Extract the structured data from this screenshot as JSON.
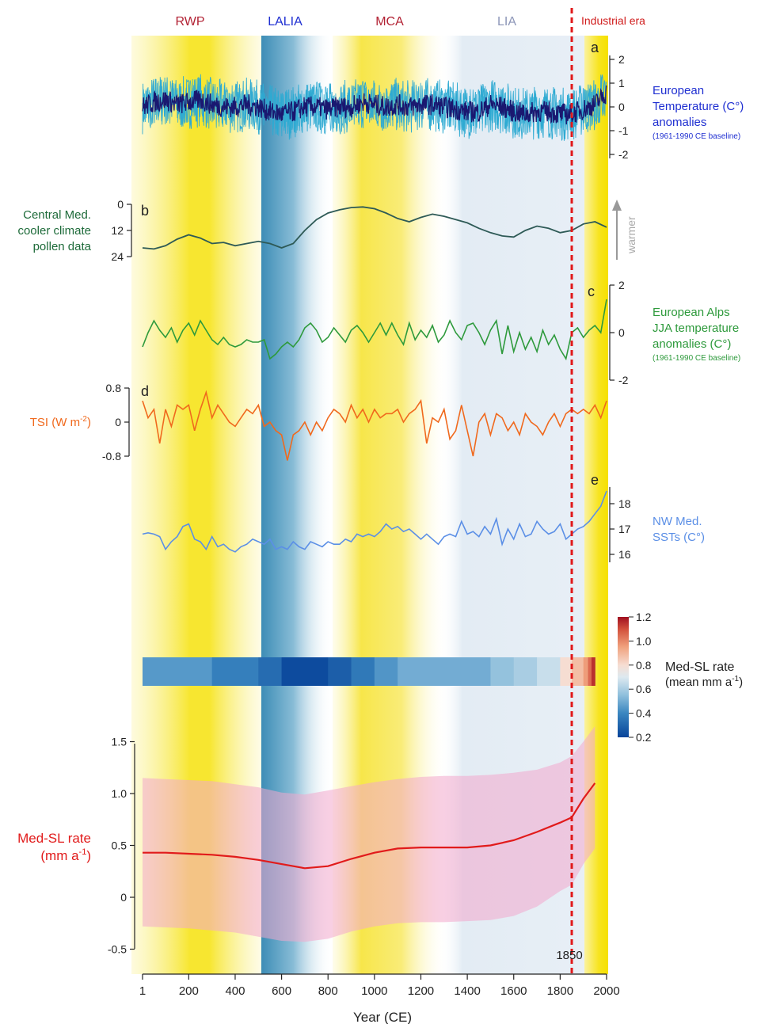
{
  "periods": [
    {
      "label": "RWP",
      "color": "#b22234"
    },
    {
      "label": "LALIA",
      "color": "#1f2fd1"
    },
    {
      "label": "MCA",
      "color": "#b22234"
    },
    {
      "label": "LIA",
      "color": "#8d96b8"
    },
    {
      "label": "Industrial era",
      "color": "#d01c1c"
    }
  ],
  "axis_x": {
    "label": "Year (CE)",
    "ticks": [
      "1",
      "200",
      "400",
      "600",
      "800",
      "1000",
      "1200",
      "1400",
      "1600",
      "1800",
      "2000"
    ],
    "tick_values": [
      1,
      200,
      400,
      600,
      800,
      1000,
      1200,
      1400,
      1600,
      1800,
      2000
    ],
    "domain": [
      1,
      2000
    ]
  },
  "marker": {
    "year": 1850,
    "label": "1850",
    "color": "#e0191b"
  },
  "colors": {
    "warm_band": "#f6ea3a",
    "cool_band": "#4a93b8",
    "lia_band": "#dfe8f2",
    "temp_series_dark": "#1a1870",
    "temp_series_light": "#2eaad2",
    "pollen": "#2e5a56",
    "alps": "#2e9a3c",
    "tsi": "#f0691d",
    "sst": "#5b8fe6",
    "slr_line": "#e11b1b",
    "slr_band": "#f2a8cc"
  },
  "panels": {
    "a": {
      "letter": "a",
      "label_lines": [
        "European",
        "Temperature (C°)",
        "anomalies"
      ],
      "baseline": "(1961-1990 CE baseline)",
      "ticks": [
        "2",
        "1",
        "0",
        "-1",
        "-2"
      ]
    },
    "b": {
      "letter": "b",
      "label_lines": [
        "Central Med.",
        "cooler climate",
        "pollen data"
      ],
      "ticks": [
        "0",
        "12",
        "24"
      ],
      "arrow_label": "warmer"
    },
    "c": {
      "letter": "c",
      "label_lines": [
        "European Alps",
        "JJA temperature",
        "anomalies (C°)"
      ],
      "baseline": "(1961-1990 CE baseline)",
      "ticks": [
        "2",
        "0",
        "-2"
      ]
    },
    "d": {
      "letter": "d",
      "label": "TSI (W m",
      "label_sup": "-2",
      "label_end": ")",
      "ticks": [
        "0.8",
        "0",
        "-0.8"
      ]
    },
    "e": {
      "letter": "e",
      "label_lines": [
        "NW Med.",
        "SSTs (C°)"
      ],
      "ticks": [
        "18",
        "17",
        "16"
      ]
    },
    "f": {
      "label_lines": [
        "Med-SL rate",
        "(mm a"
      ],
      "label_sup": "-1",
      "label_end": ")",
      "ticks": [
        "1.5",
        "1.0",
        "0.5",
        "0",
        "-0.5"
      ]
    }
  },
  "colorbar": {
    "title": "Med-SL rate",
    "subtitle": "(mean mm a",
    "subtitle_sup": "-1",
    "subtitle_end": ")",
    "ticks": [
      "1.2",
      "1.0",
      "0.8",
      "0.6",
      "0.4",
      "0.2"
    ]
  },
  "chart_data": [
    {
      "type": "line",
      "panel": "a",
      "ylabel": "European Temperature (C°) anomalies (1961-1990 CE baseline)",
      "ylim": [
        -2,
        2
      ],
      "series": [
        {
          "x": [
            1,
            50,
            100,
            150,
            200,
            250,
            300,
            350,
            400,
            450,
            500,
            550,
            600,
            650,
            700,
            750,
            800,
            850,
            900,
            950,
            1000,
            1050,
            1100,
            1150,
            1200,
            1250,
            1300,
            1350,
            1400,
            1450,
            1500,
            1550,
            1600,
            1650,
            1700,
            1750,
            1800,
            1850,
            1900,
            1950,
            2000
          ],
          "values": [
            0.0,
            0.2,
            0.3,
            0.1,
            0.2,
            0.3,
            0.1,
            0.0,
            0.0,
            0.1,
            0.0,
            -0.2,
            -0.3,
            -0.2,
            0.0,
            0.0,
            -0.1,
            0.0,
            0.0,
            0.2,
            0.1,
            0.0,
            0.1,
            0.0,
            0.1,
            0.1,
            0.0,
            -0.1,
            -0.2,
            -0.2,
            0.1,
            0.0,
            -0.2,
            -0.3,
            -0.2,
            -0.2,
            -0.3,
            -0.3,
            -0.1,
            0.1,
            0.6
          ]
        }
      ]
    },
    {
      "type": "line",
      "panel": "b",
      "ylabel": "Central Med. cooler climate pollen data",
      "ylim": [
        24,
        0
      ],
      "series": [
        {
          "x": [
            1,
            50,
            100,
            150,
            200,
            250,
            300,
            350,
            400,
            450,
            500,
            550,
            600,
            650,
            700,
            750,
            800,
            850,
            900,
            950,
            1000,
            1050,
            1100,
            1150,
            1200,
            1250,
            1300,
            1350,
            1400,
            1450,
            1500,
            1550,
            1600,
            1650,
            1700,
            1750,
            1800,
            1850,
            1900,
            1950,
            2000
          ],
          "values": [
            20,
            20.5,
            19,
            16,
            14,
            15.5,
            18,
            17.5,
            19,
            18,
            17,
            18,
            20,
            18,
            12,
            7,
            4,
            2.5,
            1.5,
            1.2,
            2,
            4,
            6.5,
            8,
            6,
            4.5,
            5.5,
            7,
            8.5,
            11,
            13,
            14.5,
            15,
            12,
            10,
            11,
            13,
            12,
            9,
            8,
            10.5
          ]
        }
      ]
    },
    {
      "type": "line",
      "panel": "c",
      "ylabel": "European Alps JJA temperature anomalies (C°)",
      "ylim": [
        -2,
        2
      ],
      "series": [
        {
          "x": [
            1,
            25,
            50,
            75,
            100,
            125,
            150,
            175,
            200,
            225,
            250,
            275,
            300,
            325,
            350,
            375,
            400,
            425,
            450,
            475,
            500,
            525,
            550,
            575,
            600,
            625,
            650,
            675,
            700,
            725,
            750,
            775,
            800,
            825,
            850,
            875,
            900,
            925,
            950,
            975,
            1000,
            1025,
            1050,
            1075,
            1100,
            1125,
            1150,
            1175,
            1200,
            1225,
            1250,
            1275,
            1300,
            1325,
            1350,
            1375,
            1400,
            1425,
            1450,
            1475,
            1500,
            1525,
            1550,
            1575,
            1600,
            1625,
            1650,
            1675,
            1700,
            1725,
            1750,
            1775,
            1800,
            1825,
            1850,
            1875,
            1900,
            1925,
            1950,
            1975,
            2000
          ],
          "values": [
            -0.6,
            0.0,
            0.5,
            0.1,
            -0.2,
            0.2,
            -0.4,
            0.1,
            0.4,
            -0.1,
            0.5,
            0.1,
            -0.3,
            -0.5,
            -0.2,
            -0.5,
            -0.6,
            -0.5,
            -0.3,
            -0.4,
            -0.4,
            -0.3,
            -1.1,
            -0.9,
            -0.6,
            -0.4,
            -0.6,
            -0.3,
            0.2,
            0.4,
            0.1,
            -0.4,
            -0.2,
            0.2,
            -0.1,
            -0.4,
            0.1,
            0.3,
            0.0,
            -0.4,
            0.0,
            0.4,
            -0.1,
            0.4,
            -0.1,
            -0.5,
            0.4,
            -0.3,
            0.1,
            -0.2,
            0.3,
            -0.4,
            -0.1,
            0.5,
            0.0,
            -0.3,
            0.3,
            0.4,
            0.0,
            -0.5,
            0.1,
            0.5,
            -0.9,
            0.3,
            -0.8,
            0.0,
            -0.7,
            -0.2,
            -0.8,
            0.1,
            -0.5,
            -0.1,
            -0.7,
            -1.1,
            0.0,
            0.2,
            -0.2,
            0.1,
            0.3,
            0.0,
            1.4
          ]
        }
      ]
    },
    {
      "type": "line",
      "panel": "d",
      "ylabel": "TSI (W m-2)",
      "ylim": [
        -0.8,
        0.8
      ],
      "series": [
        {
          "x": [
            1,
            25,
            50,
            75,
            100,
            125,
            150,
            175,
            200,
            225,
            250,
            275,
            300,
            325,
            350,
            375,
            400,
            425,
            450,
            475,
            500,
            525,
            550,
            575,
            600,
            625,
            650,
            675,
            700,
            725,
            750,
            775,
            800,
            825,
            850,
            875,
            900,
            925,
            950,
            975,
            1000,
            1025,
            1050,
            1075,
            1100,
            1125,
            1150,
            1175,
            1200,
            1225,
            1250,
            1275,
            1300,
            1325,
            1350,
            1375,
            1400,
            1425,
            1450,
            1475,
            1500,
            1525,
            1550,
            1575,
            1600,
            1625,
            1650,
            1675,
            1700,
            1725,
            1750,
            1775,
            1800,
            1825,
            1850,
            1875,
            1900,
            1925,
            1950,
            1975,
            2000
          ],
          "values": [
            0.5,
            0.1,
            0.3,
            -0.5,
            0.3,
            -0.1,
            0.4,
            0.3,
            0.4,
            -0.2,
            0.3,
            0.7,
            0.1,
            0.4,
            0.2,
            0.0,
            -0.1,
            0.1,
            0.3,
            0.2,
            0.4,
            -0.1,
            0.0,
            -0.2,
            -0.3,
            -0.9,
            -0.3,
            -0.2,
            0.0,
            -0.3,
            0.0,
            -0.2,
            0.1,
            0.3,
            0.2,
            0.0,
            0.4,
            0.1,
            0.3,
            0.0,
            0.3,
            0.1,
            0.2,
            0.2,
            0.3,
            0.0,
            0.2,
            0.3,
            0.5,
            -0.5,
            0.1,
            0.0,
            0.3,
            -0.4,
            -0.2,
            0.4,
            -0.2,
            -0.8,
            0.0,
            0.2,
            -0.3,
            0.2,
            0.1,
            -0.2,
            0.0,
            -0.3,
            0.2,
            0.0,
            -0.1,
            -0.3,
            0.0,
            0.2,
            -0.1,
            0.2,
            0.3,
            0.2,
            0.3,
            0.2,
            0.4,
            0.1,
            0.5
          ]
        }
      ]
    },
    {
      "type": "line",
      "panel": "e",
      "ylabel": "NW Med. SSTs (C°)",
      "ylim": [
        15.8,
        18.8
      ],
      "series": [
        {
          "x": [
            1,
            25,
            50,
            75,
            100,
            125,
            150,
            175,
            200,
            225,
            250,
            275,
            300,
            325,
            350,
            375,
            400,
            425,
            450,
            475,
            500,
            525,
            550,
            575,
            600,
            625,
            650,
            675,
            700,
            725,
            750,
            775,
            800,
            825,
            850,
            875,
            900,
            925,
            950,
            975,
            1000,
            1025,
            1050,
            1075,
            1100,
            1125,
            1150,
            1175,
            1200,
            1225,
            1250,
            1275,
            1300,
            1325,
            1350,
            1375,
            1400,
            1425,
            1450,
            1475,
            1500,
            1525,
            1550,
            1575,
            1600,
            1625,
            1650,
            1675,
            1700,
            1725,
            1750,
            1775,
            1800,
            1825,
            1850,
            1875,
            1900,
            1925,
            1950,
            1975,
            2000
          ],
          "values": [
            16.8,
            16.85,
            16.8,
            16.7,
            16.2,
            16.5,
            16.7,
            17.1,
            17.2,
            16.6,
            16.5,
            16.2,
            16.7,
            16.3,
            16.4,
            16.2,
            16.1,
            16.3,
            16.4,
            16.6,
            16.5,
            16.4,
            16.6,
            16.2,
            16.3,
            16.2,
            16.5,
            16.3,
            16.2,
            16.5,
            16.4,
            16.3,
            16.5,
            16.4,
            16.4,
            16.6,
            16.5,
            16.8,
            16.7,
            16.8,
            16.7,
            16.9,
            17.2,
            17.0,
            17.1,
            16.9,
            17.0,
            16.8,
            16.6,
            16.8,
            16.6,
            16.4,
            16.7,
            16.8,
            16.7,
            17.3,
            16.8,
            16.9,
            16.7,
            17.1,
            16.8,
            17.4,
            16.4,
            17.0,
            16.6,
            17.2,
            16.7,
            16.8,
            17.3,
            17.0,
            16.8,
            16.9,
            17.2,
            16.6,
            16.8,
            17.0,
            17.1,
            17.3,
            17.6,
            17.9,
            18.5
          ]
        }
      ]
    },
    {
      "type": "heatmap",
      "panel": "colorbar-strip",
      "title": "Med-SL rate (mean mm a-1)",
      "colorscale_range": [
        0.2,
        1.2
      ],
      "bins": [
        {
          "start": 1,
          "end": 300,
          "value": 0.45
        },
        {
          "start": 300,
          "end": 500,
          "value": 0.38
        },
        {
          "start": 500,
          "end": 600,
          "value": 0.32
        },
        {
          "start": 600,
          "end": 800,
          "value": 0.22
        },
        {
          "start": 800,
          "end": 900,
          "value": 0.28
        },
        {
          "start": 900,
          "end": 1000,
          "value": 0.36
        },
        {
          "start": 1000,
          "end": 1100,
          "value": 0.44
        },
        {
          "start": 1100,
          "end": 1500,
          "value": 0.5
        },
        {
          "start": 1500,
          "end": 1600,
          "value": 0.56
        },
        {
          "start": 1600,
          "end": 1700,
          "value": 0.6
        },
        {
          "start": 1700,
          "end": 1800,
          "value": 0.66
        },
        {
          "start": 1800,
          "end": 1850,
          "value": 0.8
        },
        {
          "start": 1850,
          "end": 1900,
          "value": 0.88
        },
        {
          "start": 1900,
          "end": 1920,
          "value": 0.96
        },
        {
          "start": 1920,
          "end": 1935,
          "value": 1.05
        },
        {
          "start": 1935,
          "end": 1950,
          "value": 1.15
        }
      ]
    },
    {
      "type": "area",
      "panel": "f",
      "ylabel": "Med-SL rate (mm a-1)",
      "ylim": [
        -0.5,
        1.5
      ],
      "x": [
        1,
        100,
        200,
        300,
        400,
        500,
        600,
        700,
        800,
        900,
        1000,
        1100,
        1200,
        1300,
        1400,
        1500,
        1600,
        1700,
        1800,
        1850,
        1900,
        1950
      ],
      "series": [
        {
          "name": "mean",
          "values": [
            0.43,
            0.43,
            0.42,
            0.41,
            0.39,
            0.36,
            0.32,
            0.28,
            0.3,
            0.37,
            0.43,
            0.47,
            0.48,
            0.48,
            0.48,
            0.5,
            0.55,
            0.63,
            0.72,
            0.77,
            0.95,
            1.1
          ]
        },
        {
          "name": "upper",
          "values": [
            1.15,
            1.14,
            1.13,
            1.12,
            1.09,
            1.06,
            1.01,
            0.99,
            1.03,
            1.07,
            1.11,
            1.14,
            1.16,
            1.17,
            1.17,
            1.18,
            1.2,
            1.23,
            1.3,
            1.36,
            1.5,
            1.65
          ]
        },
        {
          "name": "lower",
          "values": [
            -0.28,
            -0.29,
            -0.3,
            -0.32,
            -0.34,
            -0.38,
            -0.42,
            -0.43,
            -0.4,
            -0.33,
            -0.28,
            -0.25,
            -0.24,
            -0.24,
            -0.23,
            -0.22,
            -0.18,
            -0.09,
            0.06,
            0.12,
            0.32,
            0.47
          ]
        }
      ]
    }
  ]
}
